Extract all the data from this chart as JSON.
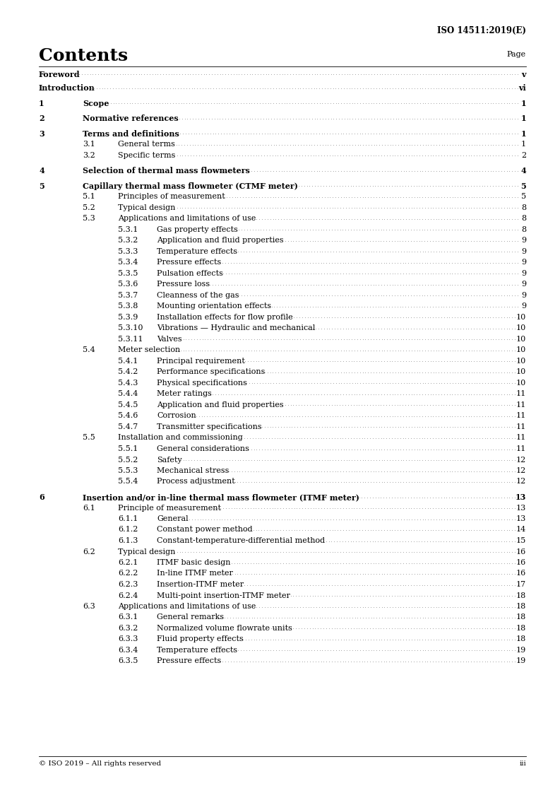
{
  "header": "ISO 14511:2019(E)",
  "title": "Contents",
  "page_label": "Page",
  "footer": "© ISO 2019 – All rights reserved",
  "footer_page": "iii",
  "background_color": "#ffffff",
  "entries": [
    {
      "level": 0,
      "num": "Foreword",
      "text": "",
      "page": "v",
      "bold": true
    },
    {
      "level": 0,
      "num": "Introduction",
      "text": "",
      "page": "vi",
      "bold": true
    },
    {
      "level": 1,
      "num": "1",
      "text": "Scope",
      "page": "1",
      "bold": true
    },
    {
      "level": 1,
      "num": "2",
      "text": "Normative references",
      "page": "1",
      "bold": true
    },
    {
      "level": 1,
      "num": "3",
      "text": "Terms and definitions",
      "page": "1",
      "bold": true
    },
    {
      "level": 2,
      "num": "3.1",
      "text": "General terms",
      "page": "1",
      "bold": false
    },
    {
      "level": 2,
      "num": "3.2",
      "text": "Specific terms",
      "page": "2",
      "bold": false
    },
    {
      "level": 1,
      "num": "4",
      "text": "Selection of thermal mass flowmeters",
      "page": "4",
      "bold": true
    },
    {
      "level": 1,
      "num": "5",
      "text": "Capillary thermal mass flowmeter (CTMF meter)",
      "page": "5",
      "bold": true
    },
    {
      "level": 2,
      "num": "5.1",
      "text": "Principles of measurement",
      "page": "5",
      "bold": false
    },
    {
      "level": 2,
      "num": "5.2",
      "text": "Typical design",
      "page": "8",
      "bold": false
    },
    {
      "level": 2,
      "num": "5.3",
      "text": "Applications and limitations of use",
      "page": "8",
      "bold": false
    },
    {
      "level": 3,
      "num": "5.3.1",
      "text": "Gas property effects",
      "page": "8",
      "bold": false
    },
    {
      "level": 3,
      "num": "5.3.2",
      "text": "Application and fluid properties",
      "page": "9",
      "bold": false
    },
    {
      "level": 3,
      "num": "5.3.3",
      "text": "Temperature effects",
      "page": "9",
      "bold": false
    },
    {
      "level": 3,
      "num": "5.3.4",
      "text": "Pressure effects",
      "page": "9",
      "bold": false
    },
    {
      "level": 3,
      "num": "5.3.5",
      "text": "Pulsation effects",
      "page": "9",
      "bold": false
    },
    {
      "level": 3,
      "num": "5.3.6",
      "text": "Pressure loss",
      "page": "9",
      "bold": false
    },
    {
      "level": 3,
      "num": "5.3.7",
      "text": "Cleanness of the gas",
      "page": "9",
      "bold": false
    },
    {
      "level": 3,
      "num": "5.3.8",
      "text": "Mounting orientation effects",
      "page": "9",
      "bold": false
    },
    {
      "level": 3,
      "num": "5.3.9",
      "text": "Installation effects for flow profile",
      "page": "10",
      "bold": false
    },
    {
      "level": 3,
      "num": "5.3.10",
      "text": "Vibrations — Hydraulic and mechanical",
      "page": "10",
      "bold": false
    },
    {
      "level": 3,
      "num": "5.3.11",
      "text": "Valves",
      "page": "10",
      "bold": false
    },
    {
      "level": 2,
      "num": "5.4",
      "text": "Meter selection",
      "page": "10",
      "bold": false
    },
    {
      "level": 3,
      "num": "5.4.1",
      "text": "Principal requirement",
      "page": "10",
      "bold": false
    },
    {
      "level": 3,
      "num": "5.4.2",
      "text": "Performance specifications",
      "page": "10",
      "bold": false
    },
    {
      "level": 3,
      "num": "5.4.3",
      "text": "Physical specifications",
      "page": "10",
      "bold": false
    },
    {
      "level": 3,
      "num": "5.4.4",
      "text": "Meter ratings",
      "page": "11",
      "bold": false
    },
    {
      "level": 3,
      "num": "5.4.5",
      "text": "Application and fluid properties",
      "page": "11",
      "bold": false
    },
    {
      "level": 3,
      "num": "5.4.6",
      "text": "Corrosion",
      "page": "11",
      "bold": false
    },
    {
      "level": 3,
      "num": "5.4.7",
      "text": "Transmitter specifications",
      "page": "11",
      "bold": false
    },
    {
      "level": 2,
      "num": "5.5",
      "text": "Installation and commissioning",
      "page": "11",
      "bold": false
    },
    {
      "level": 3,
      "num": "5.5.1",
      "text": "General considerations",
      "page": "11",
      "bold": false
    },
    {
      "level": 3,
      "num": "5.5.2",
      "text": "Safety",
      "page": "12",
      "bold": false
    },
    {
      "level": 3,
      "num": "5.5.3",
      "text": "Mechanical stress",
      "page": "12",
      "bold": false
    },
    {
      "level": 3,
      "num": "5.5.4",
      "text": "Process adjustment",
      "page": "12",
      "bold": false
    },
    {
      "level": 1,
      "num": "6",
      "text": "Insertion and/or in-line thermal mass flowmeter (ITMF meter)",
      "page": "13",
      "bold": true
    },
    {
      "level": 2,
      "num": "6.1",
      "text": "Principle of measurement",
      "page": "13",
      "bold": false
    },
    {
      "level": 3,
      "num": "6.1.1",
      "text": "General",
      "page": "13",
      "bold": false
    },
    {
      "level": 3,
      "num": "6.1.2",
      "text": "Constant power method",
      "page": "14",
      "bold": false
    },
    {
      "level": 3,
      "num": "6.1.3",
      "text": "Constant-temperature-differential method",
      "page": "15",
      "bold": false
    },
    {
      "level": 2,
      "num": "6.2",
      "text": "Typical design",
      "page": "16",
      "bold": false
    },
    {
      "level": 3,
      "num": "6.2.1",
      "text": "ITMF basic design",
      "page": "16",
      "bold": false
    },
    {
      "level": 3,
      "num": "6.2.2",
      "text": "In-line ITMF meter",
      "page": "16",
      "bold": false
    },
    {
      "level": 3,
      "num": "6.2.3",
      "text": "Insertion-ITMF meter",
      "page": "17",
      "bold": false
    },
    {
      "level": 3,
      "num": "6.2.4",
      "text": "Multi-point insertion-ITMF meter",
      "page": "18",
      "bold": false
    },
    {
      "level": 2,
      "num": "6.3",
      "text": "Applications and limitations of use",
      "page": "18",
      "bold": false
    },
    {
      "level": 3,
      "num": "6.3.1",
      "text": "General remarks",
      "page": "18",
      "bold": false
    },
    {
      "level": 3,
      "num": "6.3.2",
      "text": "Normalized volume flowrate units",
      "page": "18",
      "bold": false
    },
    {
      "level": 3,
      "num": "6.3.3",
      "text": "Fluid property effects",
      "page": "18",
      "bold": false
    },
    {
      "level": 3,
      "num": "6.3.4",
      "text": "Temperature effects",
      "page": "19",
      "bold": false
    },
    {
      "level": 3,
      "num": "6.3.5",
      "text": "Pressure effects",
      "page": "19",
      "bold": false
    }
  ],
  "font_size_title": 18,
  "font_size_header": 8.5,
  "font_size_body": 8.0,
  "font_size_footer": 7.5,
  "text_color": "#000000",
  "font_family": "DejaVu Serif"
}
